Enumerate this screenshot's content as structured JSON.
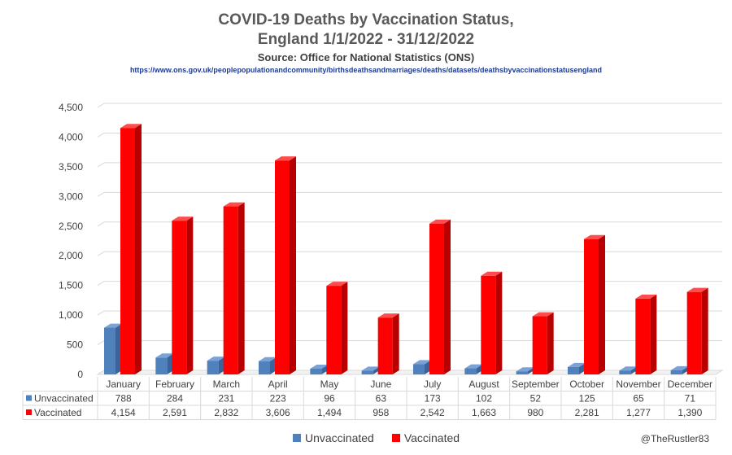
{
  "header": {
    "title_line1": "COVID-19 Deaths by Vaccination Status,",
    "title_line2": "England 1/1/2022 - 31/12/2022",
    "source": "Source: Office for National Statistics (ONS)",
    "url": "https://www.ons.gov.uk/peoplepopulationandcommunity/birthsdeathsandmarriages/deaths/datasets/deathsbyvaccinationstatusengland"
  },
  "colors": {
    "unvaccinated": "#4f81bd",
    "vaccinated": "#ff0000"
  },
  "chart_data": {
    "type": "bar",
    "categories": [
      "January",
      "February",
      "March",
      "April",
      "May",
      "June",
      "July",
      "August",
      "September",
      "October",
      "November",
      "December"
    ],
    "series": [
      {
        "name": "Unvaccinated",
        "values": [
          788,
          284,
          231,
          223,
          96,
          63,
          173,
          102,
          52,
          125,
          65,
          71
        ],
        "labels": [
          "788",
          "284",
          "231",
          "223",
          "96",
          "63",
          "173",
          "102",
          "52",
          "125",
          "65",
          "71"
        ]
      },
      {
        "name": "Vaccinated",
        "values": [
          4154,
          2591,
          2832,
          3606,
          1494,
          958,
          2542,
          1663,
          980,
          2281,
          1277,
          1390
        ],
        "labels": [
          "4,154",
          "2,591",
          "2,832",
          "3,606",
          "1,494",
          "958",
          "2,542",
          "1,663",
          "980",
          "2,281",
          "1,277",
          "1,390"
        ]
      }
    ],
    "yticks": [
      "0",
      "500",
      "1,000",
      "1,500",
      "2,000",
      "2,500",
      "3,000",
      "3,500",
      "4,000",
      "4,500"
    ],
    "ylim": [
      0,
      4500
    ],
    "grid": true,
    "legend_position": "bottom"
  },
  "footer": {
    "handle": "@TheRustler83"
  }
}
